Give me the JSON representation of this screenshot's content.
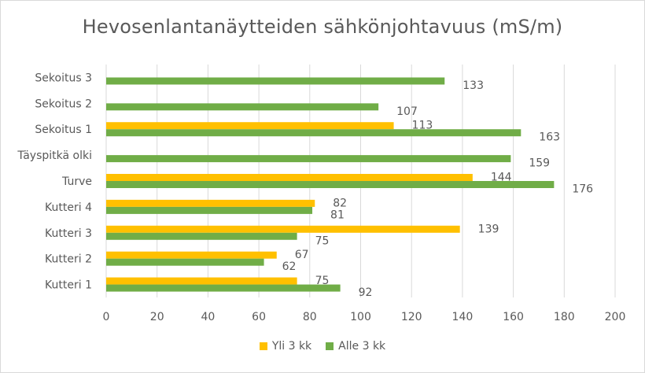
{
  "chart_data": {
    "type": "bar",
    "orientation": "horizontal",
    "title": "Hevosenlantanäytteiden sähkönjohtavuus (mS/m)",
    "xlabel": "",
    "ylabel": "",
    "categories": [
      "Kutteri 1",
      "Kutteri 2",
      "Kutteri 3",
      "Kutteri 4",
      "Turve",
      "Täyspitkä olki",
      "Sekoitus 1",
      "Sekoitus 2",
      "Sekoitus 3"
    ],
    "series": [
      {
        "name": "Yli 3 kk",
        "color": "#ffc000",
        "values": [
          75,
          67,
          139,
          82,
          144,
          null,
          113,
          null,
          null
        ]
      },
      {
        "name": "Alle 3 kk",
        "color": "#70ad47",
        "values": [
          92,
          62,
          75,
          81,
          176,
          159,
          163,
          107,
          133
        ]
      }
    ],
    "xlim": [
      0,
      200
    ],
    "xticks": [
      0,
      20,
      40,
      60,
      80,
      100,
      120,
      140,
      160,
      180,
      200
    ],
    "grid": true,
    "legend_position": "bottom"
  }
}
